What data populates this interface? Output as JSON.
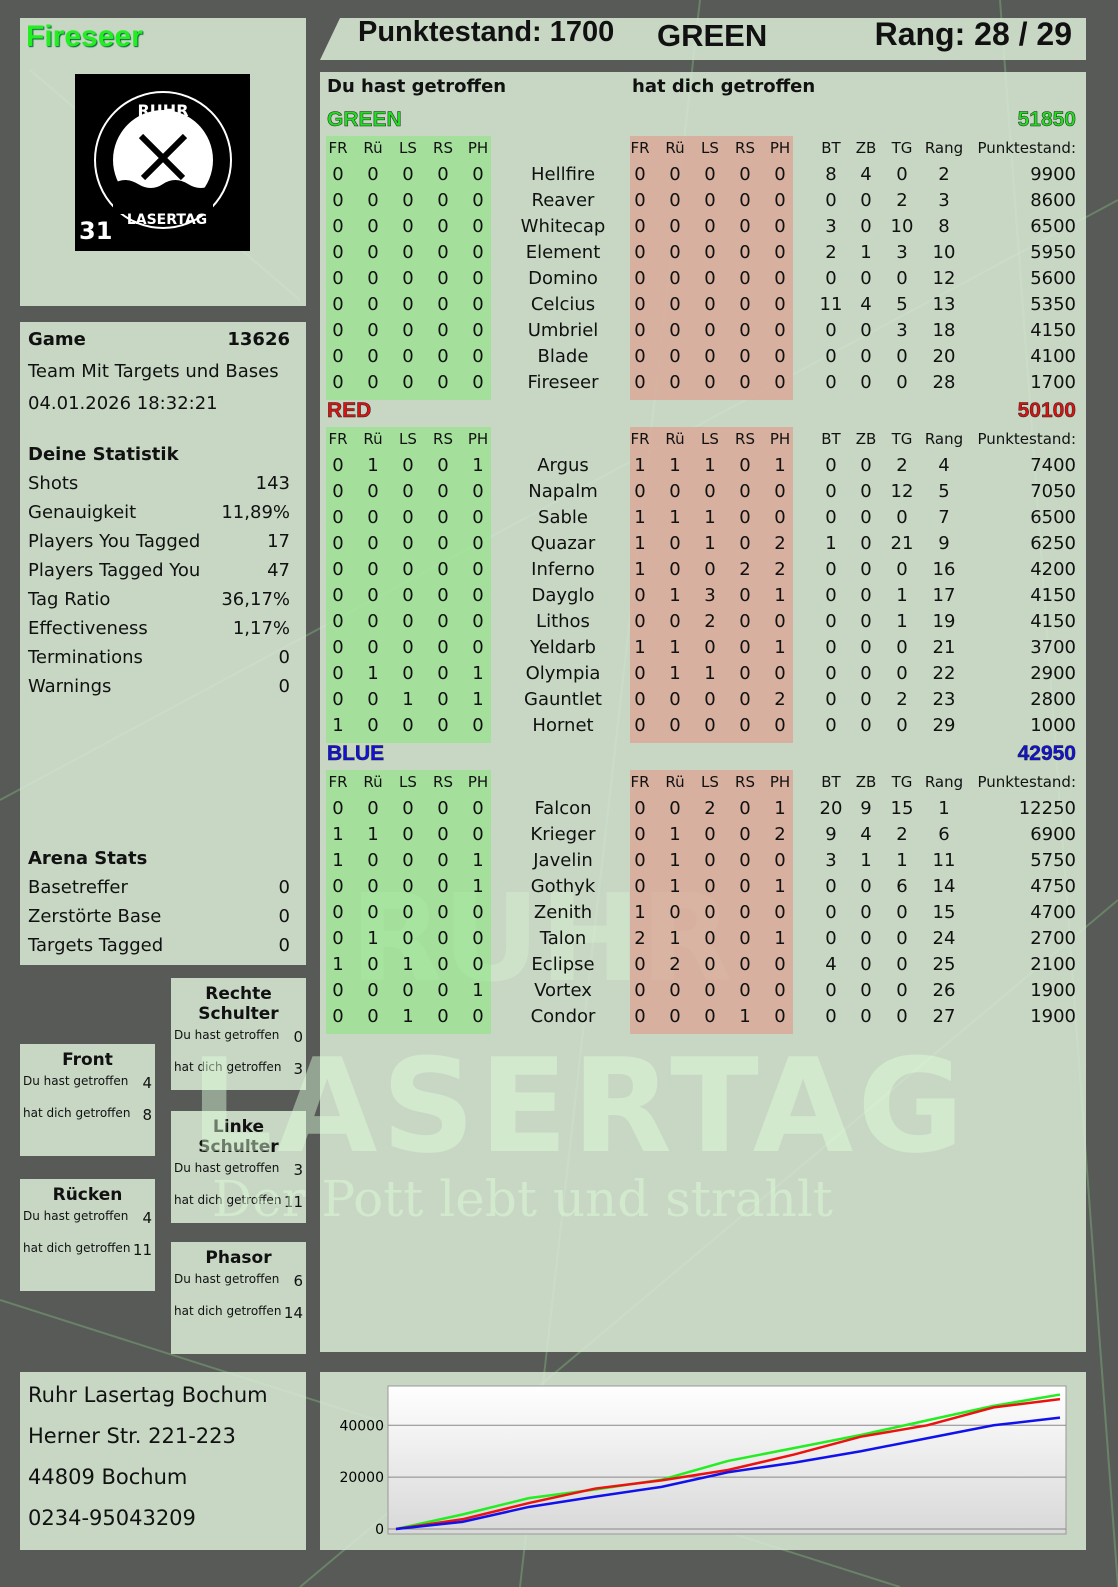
{
  "player": {
    "name": "Fireseer",
    "name_color": "#22ee22",
    "score_label": "Punktestand: 1700",
    "team": "GREEN",
    "rank_label": "Rang: 28 / 29"
  },
  "logo": {
    "top_text": "RUHR",
    "bottom_text": "LASERTAG",
    "badge": "31"
  },
  "game": {
    "label": "Game",
    "id": "13626",
    "mode": "Team Mit Targets und Bases",
    "datetime": "04.01.2026 18:32:21"
  },
  "stats": {
    "title": "Deine Statistik",
    "items": [
      {
        "label": "Shots",
        "value": "143"
      },
      {
        "label": "Genauigkeit",
        "value": "11,89%"
      },
      {
        "label": "Players You Tagged",
        "value": "17"
      },
      {
        "label": "Players Tagged You",
        "value": "47"
      },
      {
        "label": "Tag Ratio",
        "value": "36,17%"
      },
      {
        "label": "Effectiveness",
        "value": "1,17%"
      },
      {
        "label": "Terminations",
        "value": "0"
      },
      {
        "label": "Warnings",
        "value": "0"
      }
    ]
  },
  "arena": {
    "title": "Arena Stats",
    "items": [
      {
        "label": "Basetreffer",
        "value": "0"
      },
      {
        "label": "Zerstörte Base",
        "value": "0"
      },
      {
        "label": "Targets Tagged",
        "value": "0"
      }
    ]
  },
  "zones": [
    {
      "title": "Front",
      "hit_label": "Du hast getroffen",
      "hit": "4",
      "got_label": "hat dich getroffen",
      "got": "8"
    },
    {
      "title": "Rechte Schulter",
      "hit_label": "Du hast getroffen",
      "hit": "0",
      "got_label": "hat dich getroffen",
      "got": "3"
    },
    {
      "title": "Linke Schulter",
      "hit_label": "Du hast getroffen",
      "hit": "3",
      "got_label": "hat dich getroffen",
      "got": "11"
    },
    {
      "title": "Rücken",
      "hit_label": "Du hast getroffen",
      "hit": "4",
      "got_label": "hat dich getroffen",
      "got": "11"
    },
    {
      "title": "Phasor",
      "hit_label": "Du hast getroffen",
      "hit": "6",
      "got_label": "hat dich getroffen",
      "got": "14"
    }
  ],
  "address": [
    "Ruhr Lasertag Bochum",
    "Herner Str. 221-223",
    "44809 Bochum",
    "0234-95043209"
  ],
  "table": {
    "hit_title": "Du hast getroffen",
    "got_title": "hat dich getroffen",
    "hit_cols": [
      "FR",
      "Rü",
      "LS",
      "RS",
      "PH"
    ],
    "stat_cols": [
      "BT",
      "ZB",
      "TG",
      "Rang"
    ],
    "points_col": "Punktestand:",
    "teams": [
      {
        "name": "GREEN",
        "total": "51850",
        "color": "#22dd22",
        "rows": [
          [
            "Hellfire",
            [
              0,
              0,
              0,
              0,
              0
            ],
            [
              0,
              0,
              0,
              0,
              0
            ],
            8,
            4,
            0,
            2,
            9900
          ],
          [
            "Reaver",
            [
              0,
              0,
              0,
              0,
              0
            ],
            [
              0,
              0,
              0,
              0,
              0
            ],
            0,
            0,
            2,
            3,
            8600
          ],
          [
            "Whitecap",
            [
              0,
              0,
              0,
              0,
              0
            ],
            [
              0,
              0,
              0,
              0,
              0
            ],
            3,
            0,
            10,
            8,
            6500
          ],
          [
            "Element",
            [
              0,
              0,
              0,
              0,
              0
            ],
            [
              0,
              0,
              0,
              0,
              0
            ],
            2,
            1,
            3,
            10,
            5950
          ],
          [
            "Domino",
            [
              0,
              0,
              0,
              0,
              0
            ],
            [
              0,
              0,
              0,
              0,
              0
            ],
            0,
            0,
            0,
            12,
            5600
          ],
          [
            "Celcius",
            [
              0,
              0,
              0,
              0,
              0
            ],
            [
              0,
              0,
              0,
              0,
              0
            ],
            11,
            4,
            5,
            13,
            5350
          ],
          [
            "Umbriel",
            [
              0,
              0,
              0,
              0,
              0
            ],
            [
              0,
              0,
              0,
              0,
              0
            ],
            0,
            0,
            3,
            18,
            4150
          ],
          [
            "Blade",
            [
              0,
              0,
              0,
              0,
              0
            ],
            [
              0,
              0,
              0,
              0,
              0
            ],
            0,
            0,
            0,
            20,
            4100
          ],
          [
            "Fireseer",
            [
              0,
              0,
              0,
              0,
              0
            ],
            [
              0,
              0,
              0,
              0,
              0
            ],
            0,
            0,
            0,
            28,
            1700
          ]
        ]
      },
      {
        "name": "RED",
        "total": "50100",
        "color": "#dd1111",
        "rows": [
          [
            "Argus",
            [
              0,
              1,
              0,
              0,
              1
            ],
            [
              1,
              1,
              1,
              0,
              1
            ],
            0,
            0,
            2,
            4,
            7400
          ],
          [
            "Napalm",
            [
              0,
              0,
              0,
              0,
              0
            ],
            [
              0,
              0,
              0,
              0,
              0
            ],
            0,
            0,
            12,
            5,
            7050
          ],
          [
            "Sable",
            [
              0,
              0,
              0,
              0,
              0
            ],
            [
              1,
              1,
              1,
              0,
              0
            ],
            0,
            0,
            0,
            7,
            6500
          ],
          [
            "Quazar",
            [
              0,
              0,
              0,
              0,
              0
            ],
            [
              1,
              0,
              1,
              0,
              2
            ],
            1,
            0,
            21,
            9,
            6250
          ],
          [
            "Inferno",
            [
              0,
              0,
              0,
              0,
              0
            ],
            [
              1,
              0,
              0,
              2,
              2
            ],
            0,
            0,
            0,
            16,
            4200
          ],
          [
            "Dayglo",
            [
              0,
              0,
              0,
              0,
              0
            ],
            [
              0,
              1,
              3,
              0,
              1
            ],
            0,
            0,
            1,
            17,
            4150
          ],
          [
            "Lithos",
            [
              0,
              0,
              0,
              0,
              0
            ],
            [
              0,
              0,
              2,
              0,
              0
            ],
            0,
            0,
            1,
            19,
            4150
          ],
          [
            "Yeldarb",
            [
              0,
              0,
              0,
              0,
              0
            ],
            [
              1,
              1,
              0,
              0,
              1
            ],
            0,
            0,
            0,
            21,
            3700
          ],
          [
            "Olympia",
            [
              0,
              1,
              0,
              0,
              1
            ],
            [
              0,
              1,
              1,
              0,
              0
            ],
            0,
            0,
            0,
            22,
            2900
          ],
          [
            "Gauntlet",
            [
              0,
              0,
              1,
              0,
              1
            ],
            [
              0,
              0,
              0,
              0,
              2
            ],
            0,
            0,
            2,
            23,
            2800
          ],
          [
            "Hornet",
            [
              1,
              0,
              0,
              0,
              0
            ],
            [
              0,
              0,
              0,
              0,
              0
            ],
            0,
            0,
            0,
            29,
            1000
          ]
        ]
      },
      {
        "name": "BLUE",
        "total": "42950",
        "color": "#1111dd",
        "rows": [
          [
            "Falcon",
            [
              0,
              0,
              0,
              0,
              0
            ],
            [
              0,
              0,
              2,
              0,
              1
            ],
            20,
            9,
            15,
            1,
            12250
          ],
          [
            "Krieger",
            [
              1,
              1,
              0,
              0,
              0
            ],
            [
              0,
              1,
              0,
              0,
              2
            ],
            9,
            4,
            2,
            6,
            6900
          ],
          [
            "Javelin",
            [
              1,
              0,
              0,
              0,
              1
            ],
            [
              0,
              1,
              0,
              0,
              0
            ],
            3,
            1,
            1,
            11,
            5750
          ],
          [
            "Gothyk",
            [
              0,
              0,
              0,
              0,
              1
            ],
            [
              0,
              1,
              0,
              0,
              1
            ],
            0,
            0,
            6,
            14,
            4750
          ],
          [
            "Zenith",
            [
              0,
              0,
              0,
              0,
              0
            ],
            [
              1,
              0,
              0,
              0,
              0
            ],
            0,
            0,
            0,
            15,
            4700
          ],
          [
            "Talon",
            [
              0,
              1,
              0,
              0,
              0
            ],
            [
              2,
              1,
              0,
              0,
              1
            ],
            0,
            0,
            0,
            24,
            2700
          ],
          [
            "Eclipse",
            [
              1,
              0,
              1,
              0,
              0
            ],
            [
              0,
              2,
              0,
              0,
              0
            ],
            4,
            0,
            0,
            25,
            2100
          ],
          [
            "Vortex",
            [
              0,
              0,
              0,
              0,
              1
            ],
            [
              0,
              0,
              0,
              0,
              0
            ],
            0,
            0,
            0,
            26,
            1900
          ],
          [
            "Condor",
            [
              0,
              0,
              1,
              0,
              0
            ],
            [
              0,
              0,
              0,
              1,
              0
            ],
            0,
            0,
            0,
            27,
            1900
          ]
        ]
      }
    ]
  },
  "watermark": {
    "line1": "RUHR",
    "line2": "LASERTAG",
    "slogan": "Der Pott lebt und strahlt"
  },
  "chart_data": {
    "type": "line",
    "ylim": [
      0,
      54000
    ],
    "yticks": [
      "0",
      "20000",
      "40000"
    ],
    "grid": true,
    "x": [
      0,
      10,
      20,
      30,
      40,
      50,
      60,
      70,
      80,
      90,
      100
    ],
    "series": [
      {
        "color": "#22ee22",
        "values": [
          0,
          5600,
          11900,
          15250,
          19000,
          26250,
          31250,
          36250,
          41900,
          47500,
          51850
        ]
      },
      {
        "color": "#ee1111",
        "values": [
          0,
          3750,
          10000,
          15600,
          18750,
          22750,
          28750,
          35600,
          40000,
          46900,
          50100
        ]
      },
      {
        "color": "#1111ee",
        "values": [
          0,
          2750,
          8500,
          12500,
          16250,
          21900,
          25600,
          30000,
          35000,
          40000,
          42950
        ]
      }
    ]
  }
}
